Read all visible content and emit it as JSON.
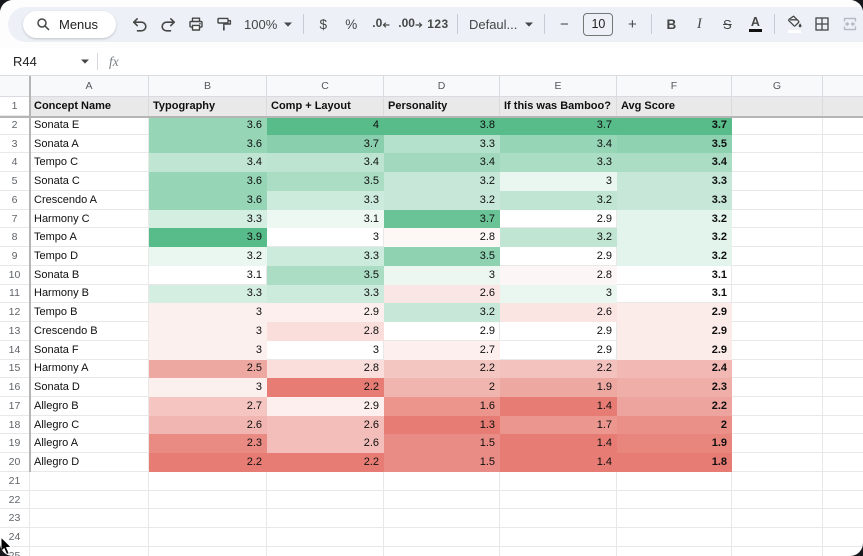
{
  "toolbar": {
    "menus_label": "Menus",
    "zoom_value": "100%",
    "currency": "$",
    "percent": "%",
    "decrease_decimal": ".0",
    "increase_decimal": ".00",
    "number_format": "123",
    "font_name": "Defaul...",
    "decrease_font": "−",
    "font_size": "10",
    "increase_font": "+",
    "bold": "B",
    "italic": "I",
    "strikethrough": "S",
    "text_color": "A"
  },
  "formula_bar": {
    "name_box": "R44",
    "fx_label": "fx"
  },
  "colors": {
    "scale_min": "#E67C73",
    "scale_mid": "#FFFFFF",
    "scale_max": "#57BB8A",
    "header_fill": "#E9E9E9",
    "toolbar_fill": "#EDF1F7"
  },
  "sheet": {
    "column_letters": [
      "A",
      "B",
      "C",
      "D",
      "E",
      "F",
      "G"
    ],
    "headers": [
      "Concept Name",
      "Typography",
      "Comp + Layout",
      "Personality",
      "If this was Bamboo?",
      "Avg Score"
    ],
    "rows": [
      {
        "name": "Sonata E",
        "values": [
          "3.6",
          "4",
          "3.8",
          "3.7",
          "3.7"
        ]
      },
      {
        "name": "Sonata A",
        "values": [
          "3.6",
          "3.7",
          "3.3",
          "3.4",
          "3.5"
        ]
      },
      {
        "name": "Tempo C",
        "values": [
          "3.4",
          "3.4",
          "3.4",
          "3.3",
          "3.4"
        ]
      },
      {
        "name": "Sonata C",
        "values": [
          "3.6",
          "3.5",
          "3.2",
          "3",
          "3.3"
        ]
      },
      {
        "name": "Crescendo A",
        "values": [
          "3.6",
          "3.3",
          "3.2",
          "3.2",
          "3.3"
        ]
      },
      {
        "name": "Harmony C",
        "values": [
          "3.3",
          "3.1",
          "3.7",
          "2.9",
          "3.2"
        ]
      },
      {
        "name": "Tempo A",
        "values": [
          "3.9",
          "3",
          "2.8",
          "3.2",
          "3.2"
        ]
      },
      {
        "name": "Tempo D",
        "values": [
          "3.2",
          "3.3",
          "3.5",
          "2.9",
          "3.2"
        ]
      },
      {
        "name": "Sonata B",
        "values": [
          "3.1",
          "3.5",
          "3",
          "2.8",
          "3.1"
        ]
      },
      {
        "name": "Harmony B",
        "values": [
          "3.3",
          "3.3",
          "2.6",
          "3",
          "3.1"
        ]
      },
      {
        "name": "Tempo B",
        "values": [
          "3",
          "2.9",
          "3.2",
          "2.6",
          "2.9"
        ]
      },
      {
        "name": "Crescendo B",
        "values": [
          "3",
          "2.8",
          "2.9",
          "2.9",
          "2.9"
        ]
      },
      {
        "name": "Sonata F",
        "values": [
          "3",
          "3",
          "2.7",
          "2.9",
          "2.9"
        ]
      },
      {
        "name": "Harmony A",
        "values": [
          "2.5",
          "2.8",
          "2.2",
          "2.2",
          "2.4"
        ]
      },
      {
        "name": "Sonata D",
        "values": [
          "3",
          "2.2",
          "2",
          "1.9",
          "2.3"
        ]
      },
      {
        "name": "Allegro B",
        "values": [
          "2.7",
          "2.9",
          "1.6",
          "1.4",
          "2.2"
        ]
      },
      {
        "name": "Allegro C",
        "values": [
          "2.6",
          "2.6",
          "1.3",
          "1.7",
          "2"
        ]
      },
      {
        "name": "Allegro A",
        "values": [
          "2.3",
          "2.6",
          "1.5",
          "1.4",
          "1.9"
        ]
      },
      {
        "name": "Allegro D",
        "values": [
          "2.2",
          "2.2",
          "1.5",
          "1.4",
          "1.8"
        ]
      }
    ],
    "first_empty_row": 21,
    "last_visible_row": 25
  }
}
